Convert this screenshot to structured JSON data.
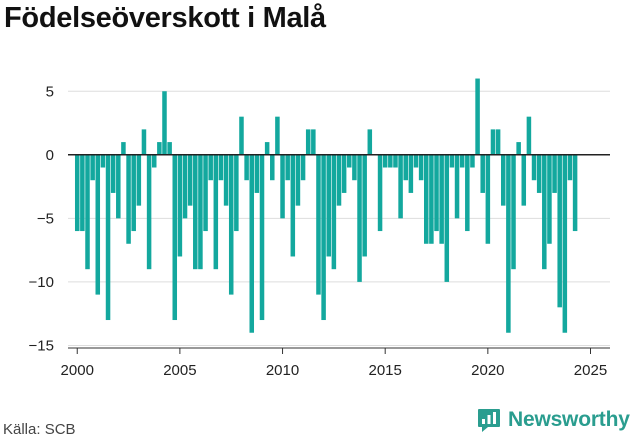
{
  "header": {
    "title": "Födelseöverskott i Malå"
  },
  "footer": {
    "source": "Källa: SCB",
    "brand": "Newsworthy"
  },
  "colors": {
    "bar": "#13a89e",
    "brand": "#2a9d8f",
    "grid": "#dddddd",
    "zero_line": "#222222"
  },
  "chart_data": {
    "type": "bar",
    "title": "Födelseöverskott i Malå",
    "xlabel": "",
    "ylabel": "",
    "x_unit": "quarterly periods (4 bars per year)",
    "x_ticks": [
      2000,
      2005,
      2010,
      2015,
      2020,
      2025
    ],
    "y_ticks": [
      5,
      0,
      -5,
      -10,
      -15
    ],
    "y_tick_labels": [
      "5",
      "0",
      "−5",
      "−10",
      "−15"
    ],
    "ylim": [
      -15.2,
      6.2
    ],
    "xlim": [
      1999.55,
      2025.95
    ],
    "grid": true,
    "start": 2000,
    "periods_per_year": 4,
    "values": [
      -6,
      -6,
      -9,
      -2,
      -11,
      -1,
      -13,
      -3,
      -5,
      1,
      -7,
      -6,
      -4,
      2,
      -9,
      -1,
      1,
      5,
      1,
      -13,
      -8,
      -5,
      -4,
      -9,
      -9,
      -6,
      -2,
      -9,
      -2,
      -4,
      -11,
      -6,
      3,
      -2,
      -14,
      -3,
      -13,
      1,
      -2,
      3,
      -5,
      -2,
      -8,
      -4,
      -2,
      2,
      2,
      -11,
      -13,
      -8,
      -9,
      -4,
      -3,
      -1,
      -2,
      -10,
      -8,
      2,
      0,
      -6,
      -1,
      -1,
      -1,
      -5,
      -2,
      -3,
      -1,
      -2,
      -7,
      -7,
      -6,
      -7,
      -10,
      -1,
      -5,
      -1,
      -6,
      -1,
      6,
      -3,
      -7,
      2,
      2,
      -4,
      -14,
      -9,
      1,
      -4,
      3,
      -2,
      -3,
      -9,
      -7,
      -3,
      -12,
      -14,
      -2,
      -6
    ]
  }
}
